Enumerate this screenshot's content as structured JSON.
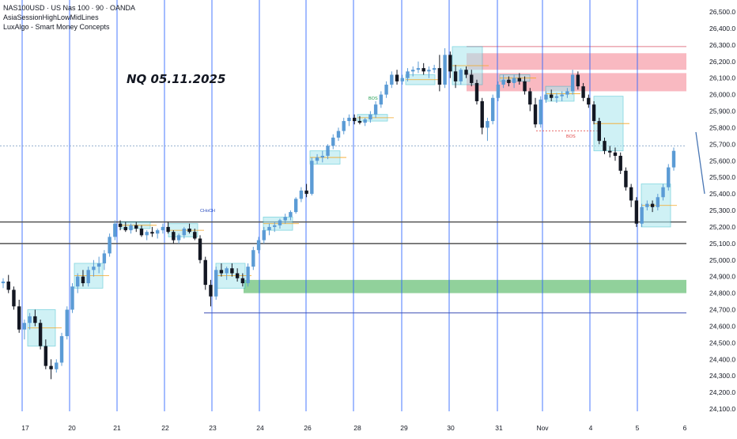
{
  "header": {
    "symbol_line": "NAS100USD · US Nas 100 · 90 · OANDA",
    "indicator_1": "AsiaSessionHighLowMidLines",
    "indicator_2": "LuxAlgo - Smart Money Concepts"
  },
  "chart_data": {
    "type": "candlestick",
    "title": "NQ 05.11.2025",
    "ylim": [
      24050,
      26550
    ],
    "y_ticks": [
      24100,
      24200,
      24300,
      24400,
      24500,
      24600,
      24700,
      24800,
      24900,
      25000,
      25100,
      25200,
      25300,
      25400,
      25500,
      25600,
      25700,
      25800,
      25900,
      26000,
      26100,
      26200,
      26300,
      26400,
      26500
    ],
    "y_tick_labels": [
      "24,100.0",
      "24,200.0",
      "24,300.0",
      "24,400.0",
      "24,500.0",
      "24,600.0",
      "24,700.0",
      "24,800.0",
      "24,900.0",
      "25,000.0",
      "25,100.0",
      "25,200.0",
      "25,300.0",
      "25,400.0",
      "25,500.0",
      "25,600.0",
      "25,700.0",
      "25,800.0",
      "25,900.0",
      "26,000.0",
      "26,100.0",
      "26,200.0",
      "26,300.0",
      "26,400.0",
      "26,500.0"
    ],
    "x_labels": [
      "17",
      "20",
      "21",
      "22",
      "23",
      "24",
      "26",
      "28",
      "29",
      "30",
      "31",
      "Nov",
      "4",
      "5",
      "6"
    ],
    "candles": [
      [
        24860,
        24890,
        24830,
        24870
      ],
      [
        24870,
        24910,
        24800,
        24820
      ],
      [
        24820,
        24840,
        24700,
        24720
      ],
      [
        24720,
        24760,
        24560,
        24580
      ],
      [
        24580,
        24640,
        24520,
        24620
      ],
      [
        24620,
        24680,
        24580,
        24660
      ],
      [
        24660,
        24700,
        24600,
        24620
      ],
      [
        24620,
        24640,
        24460,
        24480
      ],
      [
        24480,
        24520,
        24340,
        24360
      ],
      [
        24360,
        24400,
        24280,
        24340
      ],
      [
        24340,
        24400,
        24320,
        24380
      ],
      [
        24380,
        24560,
        24360,
        24540
      ],
      [
        24540,
        24720,
        24520,
        24700
      ],
      [
        24700,
        24860,
        24680,
        24840
      ],
      [
        24840,
        24920,
        24800,
        24900
      ],
      [
        24900,
        24940,
        24840,
        24860
      ],
      [
        24860,
        24960,
        24840,
        24940
      ],
      [
        24940,
        25000,
        24900,
        24960
      ],
      [
        24960,
        25020,
        24920,
        24980
      ],
      [
        24980,
        25060,
        24940,
        25040
      ],
      [
        25040,
        25160,
        25020,
        25140
      ],
      [
        25140,
        25240,
        25120,
        25220
      ],
      [
        25220,
        25240,
        25180,
        25200
      ],
      [
        25200,
        25230,
        25170,
        25180
      ],
      [
        25180,
        25220,
        25160,
        25210
      ],
      [
        25210,
        25230,
        25170,
        25190
      ],
      [
        25190,
        25210,
        25140,
        25150
      ],
      [
        25150,
        25180,
        25120,
        25170
      ],
      [
        25170,
        25200,
        25140,
        25160
      ],
      [
        25160,
        25190,
        25130,
        25180
      ],
      [
        25180,
        25220,
        25160,
        25200
      ],
      [
        25200,
        25230,
        25160,
        25170
      ],
      [
        25170,
        25180,
        25100,
        25120
      ],
      [
        25120,
        25160,
        25100,
        25150
      ],
      [
        25150,
        25200,
        25130,
        25190
      ],
      [
        25190,
        25220,
        25160,
        25170
      ],
      [
        25170,
        25190,
        25120,
        25130
      ],
      [
        25130,
        25150,
        24980,
        25000
      ],
      [
        25000,
        25020,
        24820,
        24850
      ],
      [
        24850,
        24880,
        24720,
        24780
      ],
      [
        24780,
        24960,
        24760,
        24940
      ],
      [
        24940,
        24980,
        24900,
        24920
      ],
      [
        24920,
        24960,
        24880,
        24950
      ],
      [
        24950,
        24980,
        24900,
        24920
      ],
      [
        24920,
        24950,
        24870,
        24890
      ],
      [
        24890,
        24920,
        24840,
        24860
      ],
      [
        24860,
        24980,
        24840,
        24960
      ],
      [
        24960,
        25080,
        24940,
        25060
      ],
      [
        25060,
        25140,
        25040,
        25120
      ],
      [
        25120,
        25200,
        25100,
        25180
      ],
      [
        25180,
        25220,
        25150,
        25200
      ],
      [
        25200,
        25230,
        25170,
        25210
      ],
      [
        25210,
        25250,
        25190,
        25240
      ],
      [
        25240,
        25280,
        25220,
        25260
      ],
      [
        25260,
        25300,
        25240,
        25290
      ],
      [
        25290,
        25380,
        25280,
        25370
      ],
      [
        25370,
        25440,
        25350,
        25420
      ],
      [
        25420,
        25460,
        25380,
        25400
      ],
      [
        25400,
        25620,
        25390,
        25600
      ],
      [
        25600,
        25640,
        25580,
        25620
      ],
      [
        25620,
        25660,
        25590,
        25630
      ],
      [
        25630,
        25700,
        25610,
        25690
      ],
      [
        25690,
        25760,
        25670,
        25740
      ],
      [
        25740,
        25800,
        25720,
        25780
      ],
      [
        25780,
        25860,
        25760,
        25840
      ],
      [
        25840,
        25880,
        25810,
        25860
      ],
      [
        25860,
        25880,
        25820,
        25840
      ],
      [
        25840,
        25870,
        25820,
        25830
      ],
      [
        25830,
        25860,
        25810,
        25850
      ],
      [
        25850,
        25900,
        25830,
        25880
      ],
      [
        25880,
        25960,
        25860,
        25940
      ],
      [
        25940,
        26020,
        25920,
        26000
      ],
      [
        26000,
        26080,
        25980,
        26060
      ],
      [
        26060,
        26140,
        26040,
        26120
      ],
      [
        26120,
        26150,
        26060,
        26080
      ],
      [
        26080,
        26120,
        26060,
        26100
      ],
      [
        26100,
        26160,
        26080,
        26140
      ],
      [
        26140,
        26170,
        26110,
        26150
      ],
      [
        26150,
        26200,
        26130,
        26160
      ],
      [
        26160,
        26190,
        26120,
        26140
      ],
      [
        26140,
        26170,
        26100,
        26150
      ],
      [
        26150,
        26180,
        26130,
        26160
      ],
      [
        26160,
        26240,
        26020,
        26060
      ],
      [
        26060,
        26280,
        26040,
        26240
      ],
      [
        26240,
        26260,
        26100,
        26140
      ],
      [
        26140,
        26180,
        26040,
        26080
      ],
      [
        26080,
        26160,
        26060,
        26150
      ],
      [
        26150,
        26170,
        26100,
        26120
      ],
      [
        26120,
        26150,
        26050,
        26070
      ],
      [
        26070,
        26090,
        25940,
        25960
      ],
      [
        25960,
        25980,
        25760,
        25800
      ],
      [
        25800,
        25860,
        25720,
        25840
      ],
      [
        25840,
        26000,
        25820,
        25980
      ],
      [
        25980,
        26080,
        25960,
        26060
      ],
      [
        26060,
        26120,
        26040,
        26090
      ],
      [
        26090,
        26110,
        26050,
        26070
      ],
      [
        26070,
        26120,
        26040,
        26100
      ],
      [
        26100,
        26130,
        26060,
        26080
      ],
      [
        26080,
        26110,
        26000,
        26020
      ],
      [
        26020,
        26040,
        25900,
        25940
      ],
      [
        25940,
        25980,
        25800,
        25820
      ],
      [
        25820,
        25990,
        25800,
        25970
      ],
      [
        25970,
        26020,
        25950,
        26000
      ],
      [
        26000,
        26030,
        25960,
        25980
      ],
      [
        25980,
        26010,
        25950,
        25990
      ],
      [
        25990,
        26020,
        25960,
        26000
      ],
      [
        26000,
        26040,
        25980,
        26020
      ],
      [
        26020,
        26150,
        26000,
        26120
      ],
      [
        26120,
        26140,
        26030,
        26050
      ],
      [
        26050,
        26070,
        25960,
        25980
      ],
      [
        25980,
        26000,
        25920,
        25940
      ],
      [
        25940,
        25960,
        25820,
        25840
      ],
      [
        25840,
        25860,
        25700,
        25720
      ],
      [
        25720,
        25740,
        25640,
        25660
      ],
      [
        25660,
        25690,
        25620,
        25650
      ],
      [
        25650,
        25680,
        25600,
        25630
      ],
      [
        25630,
        25650,
        25520,
        25540
      ],
      [
        25540,
        25560,
        25420,
        25440
      ],
      [
        25440,
        25460,
        25320,
        25360
      ],
      [
        25360,
        25380,
        25200,
        25220
      ],
      [
        25220,
        25340,
        25200,
        25320
      ],
      [
        25320,
        25360,
        25300,
        25340
      ],
      [
        25340,
        25360,
        25290,
        25320
      ],
      [
        25320,
        25400,
        25300,
        25380
      ],
      [
        25380,
        25460,
        25360,
        25440
      ],
      [
        25440,
        25580,
        25420,
        25560
      ],
      [
        25560,
        25680,
        25540,
        25660
      ]
    ],
    "annotations": {
      "boses": [
        "BOS",
        "BOS"
      ],
      "choch": "CHoCH"
    }
  },
  "colors": {
    "bull": "#5b9bd5",
    "bear": "#131722",
    "session_line": "#2962ff",
    "supply": "#f7a8b2",
    "demand": "#7ec98a",
    "box_fill": "#a8e6ee",
    "box_border": "#1fb5c6"
  }
}
